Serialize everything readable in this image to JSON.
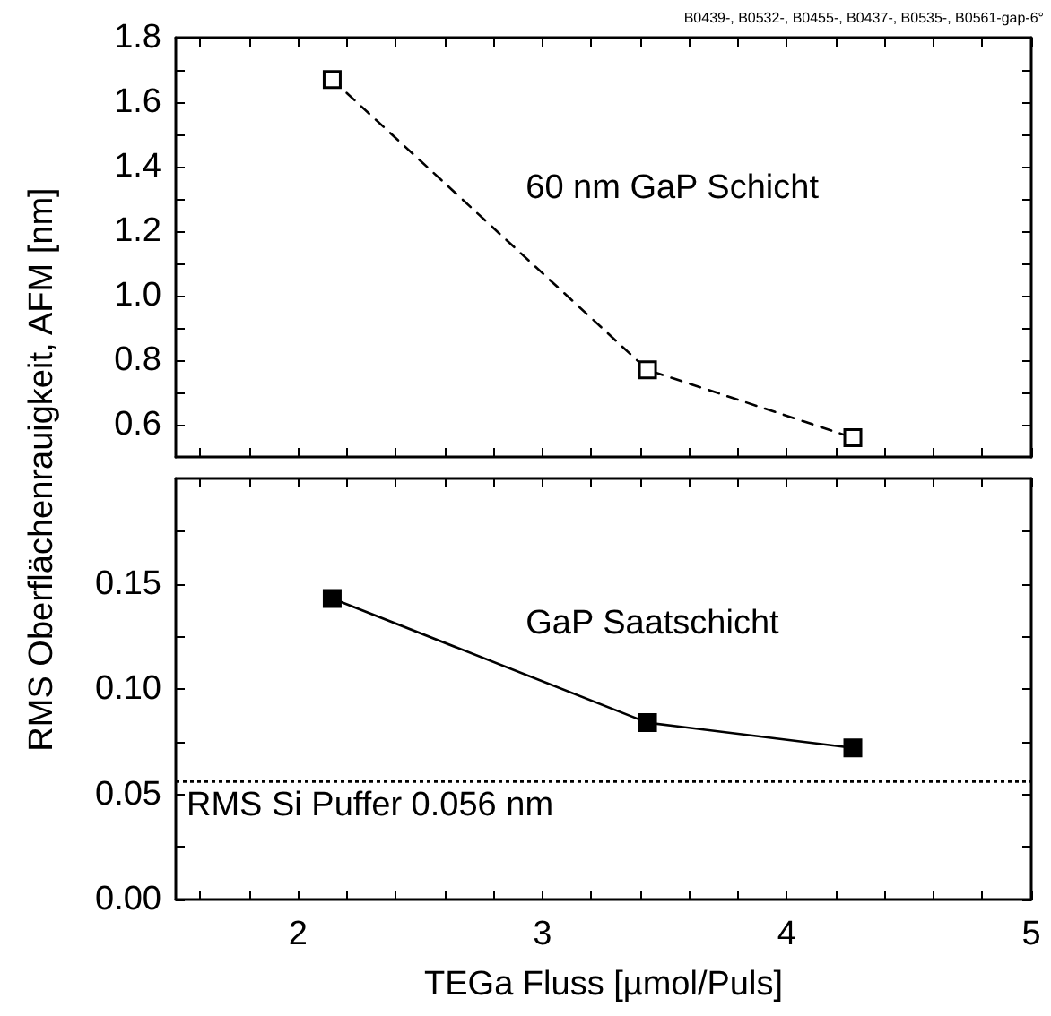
{
  "chart_data": [
    {
      "type": "line",
      "ylabel": "RMS Oberflächenrauigkeit, AFM [nm]",
      "annotations": [
        "B0439-, B0532-, B0455-, B0437-, B0535-, B0561-gap-6°"
      ],
      "x": [
        2.14,
        3.43,
        4.27
      ],
      "series": [
        {
          "name": "60 nm GaP Schicht",
          "color": "#000000",
          "values": [
            1.67,
            0.77,
            0.56
          ],
          "line_style": "dashed",
          "marker": "square"
        }
      ],
      "xlim": [
        1.5,
        5
      ],
      "ylim": [
        0.5,
        1.8
      ],
      "xticks": [
        {
          "value": 1.6,
          "label": null
        },
        {
          "value": 1.8,
          "label": null
        },
        2,
        {
          "value": 2.2,
          "label": null
        },
        {
          "value": 2.4,
          "label": null
        },
        {
          "value": 2.6,
          "label": null
        },
        {
          "value": 2.8,
          "label": null
        },
        3,
        {
          "value": 3.2,
          "label": null
        },
        {
          "value": 3.4,
          "label": null
        },
        {
          "value": 3.6,
          "label": null
        },
        {
          "value": 3.8,
          "label": null
        },
        4,
        {
          "value": 4.2,
          "label": null
        },
        {
          "value": 4.4,
          "label": null
        },
        {
          "value": 4.6,
          "label": null
        },
        {
          "value": 4.8,
          "label": null
        },
        5
      ],
      "yticks": [
        0.6,
        {
          "value": 0.7,
          "label": null
        },
        0.8,
        {
          "value": 0.9,
          "label": null
        },
        {
          "value": 1.0,
          "label": "1.0"
        },
        {
          "value": 1.1,
          "label": null
        },
        1.2,
        {
          "value": 1.3,
          "label": null
        },
        1.4,
        {
          "value": 1.5,
          "label": null
        },
        1.6,
        {
          "value": 1.7,
          "label": null
        },
        1.8
      ],
      "tick_labels": "y",
      "grid": false,
      "legend": false
    },
    {
      "type": "line",
      "xlabel": "TEGa Fluss [µmol/Puls]",
      "x": [
        2.14,
        3.43,
        4.27
      ],
      "series": [
        {
          "name": "GaP Saatschicht",
          "color": "#000000",
          "values": [
            0.143,
            0.084,
            0.072
          ],
          "line_style": "solid",
          "marker": "square"
        }
      ],
      "xlim": [
        1.5,
        5
      ],
      "ylim": [
        0,
        0.2
      ],
      "xticks": [
        {
          "value": 1.6,
          "label": null
        },
        {
          "value": 1.8,
          "label": null
        },
        2,
        {
          "value": 2.2,
          "label": null
        },
        {
          "value": 2.4,
          "label": null
        },
        {
          "value": 2.6,
          "label": null
        },
        {
          "value": 2.8,
          "label": null
        },
        3,
        {
          "value": 3.2,
          "label": null
        },
        {
          "value": 3.4,
          "label": null
        },
        {
          "value": 3.6,
          "label": null
        },
        {
          "value": 3.8,
          "label": null
        },
        4,
        {
          "value": 4.2,
          "label": null
        },
        {
          "value": 4.4,
          "label": null
        },
        {
          "value": 4.6,
          "label": null
        },
        {
          "value": 4.8,
          "label": null
        },
        5
      ],
      "yticks": [
        {
          "value": 0,
          "label": "0.00"
        },
        {
          "value": 0.025,
          "label": null
        },
        0.05,
        {
          "value": 0.075,
          "label": null
        },
        {
          "value": 0.1,
          "label": "0.10"
        },
        {
          "value": 0.125,
          "label": null
        },
        0.15,
        {
          "value": 0.175,
          "label": null
        }
      ],
      "ref_lines": [
        {
          "axis": "y",
          "value": 0.056,
          "label": "RMS Si Puffer 0.056 nm",
          "line_style": "dotted",
          "color": "#000000"
        }
      ],
      "grid": false,
      "legend": false
    }
  ]
}
